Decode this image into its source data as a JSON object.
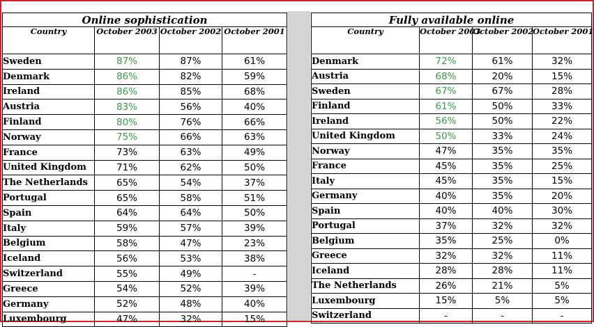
{
  "colors": {
    "highlight": "#3c9a4a",
    "frame": "#c8252c",
    "separator": "#d4d4d4"
  },
  "left": {
    "title": "Online sophistication",
    "headers": [
      "Country",
      "October 2003",
      "October 2002",
      "October 2001"
    ],
    "rows": [
      [
        "Sweden",
        "87%",
        "87%",
        "61%"
      ],
      [
        "Denmark",
        "86%",
        "82%",
        "59%"
      ],
      [
        "Ireland",
        "86%",
        "85%",
        "68%"
      ],
      [
        "Austria",
        "83%",
        "56%",
        "40%"
      ],
      [
        "Finland",
        "80%",
        "76%",
        "66%"
      ],
      [
        "Norway",
        "75%",
        "66%",
        "63%"
      ],
      [
        "France",
        "73%",
        "63%",
        "49%"
      ],
      [
        "United Kingdom",
        "71%",
        "62%",
        "50%"
      ],
      [
        "The Netherlands",
        "65%",
        "54%",
        "37%"
      ],
      [
        "Portugal",
        "65%",
        "58%",
        "51%"
      ],
      [
        "Spain",
        "64%",
        "64%",
        "50%"
      ],
      [
        "Italy",
        "59%",
        "57%",
        "39%"
      ],
      [
        "Belgium",
        "58%",
        "47%",
        "23%"
      ],
      [
        "Iceland",
        "56%",
        "53%",
        "38%"
      ],
      [
        "Switzerland",
        "55%",
        "49%",
        "-"
      ],
      [
        "Greece",
        "54%",
        "52%",
        "39%"
      ],
      [
        "Germany",
        "52%",
        "48%",
        "40%"
      ],
      [
        "Luxembourg",
        "47%",
        "32%",
        "15%"
      ]
    ],
    "highlighted_rows": 6
  },
  "right": {
    "title": "Fully available online",
    "headers": [
      "Country",
      "October 2003",
      "October 2002",
      "October 2001"
    ],
    "rows": [
      [
        "Denmark",
        "72%",
        "61%",
        "32%"
      ],
      [
        "Austria",
        "68%",
        "20%",
        "15%"
      ],
      [
        "Sweden",
        "67%",
        "67%",
        "28%"
      ],
      [
        "Finland",
        "61%",
        "50%",
        "33%"
      ],
      [
        "Ireland",
        "56%",
        "50%",
        "22%"
      ],
      [
        "United Kingdom",
        "50%",
        "33%",
        "24%"
      ],
      [
        "Norway",
        "47%",
        "35%",
        "35%"
      ],
      [
        "France",
        "45%",
        "35%",
        "25%"
      ],
      [
        "Italy",
        "45%",
        "35%",
        "15%"
      ],
      [
        "Germany",
        "40%",
        "35%",
        "20%"
      ],
      [
        "Spain",
        "40%",
        "40%",
        "30%"
      ],
      [
        "Portugal",
        "37%",
        "32%",
        "32%"
      ],
      [
        "Belgium",
        "35%",
        "25%",
        "0%"
      ],
      [
        "Greece",
        "32%",
        "32%",
        "11%"
      ],
      [
        "Iceland",
        "28%",
        "28%",
        "11%"
      ],
      [
        "The Netherlands",
        "26%",
        "21%",
        "5%"
      ],
      [
        "Luxembourg",
        "15%",
        "5%",
        "5%"
      ],
      [
        "Switzerland",
        "-",
        "-",
        "-"
      ]
    ],
    "highlighted_rows": 6
  }
}
